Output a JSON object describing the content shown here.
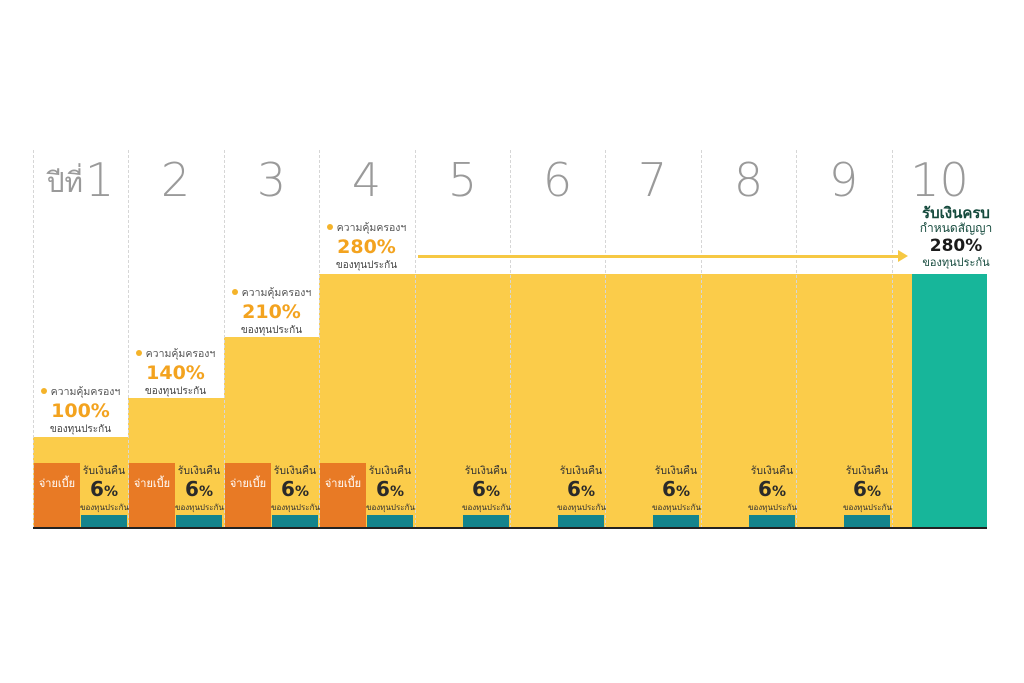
{
  "year_prefix": "ปีที่",
  "years": [
    "1",
    "2",
    "3",
    "4",
    "5",
    "6",
    "7",
    "8",
    "9",
    "10"
  ],
  "coverage": [
    {
      "year": 1,
      "label": "ความคุ้มครองฯ",
      "percent": "100%",
      "sub": "ของทุนประกัน"
    },
    {
      "year": 2,
      "label": "ความคุ้มครองฯ",
      "percent": "140%",
      "sub": "ของทุนประกัน"
    },
    {
      "year": 3,
      "label": "ความคุ้มครองฯ",
      "percent": "210%",
      "sub": "ของทุนประกัน"
    },
    {
      "year": 4,
      "label": "ความคุ้มครองฯ",
      "percent": "280%",
      "sub": "ของทุนประกัน"
    }
  ],
  "coverage_levels_percent": [
    100,
    140,
    210,
    280,
    280,
    280,
    280,
    280,
    280,
    280
  ],
  "premium_label": "จ่ายเบี้ย",
  "premium_years": [
    1,
    2,
    3,
    4
  ],
  "refund": {
    "title": "รับเงินคืน",
    "value": "6",
    "unit": "%",
    "sub": "ของทุนประกัน",
    "years": [
      1,
      2,
      3,
      4,
      5,
      6,
      7,
      8,
      9
    ]
  },
  "maturity": {
    "line1": "รับเงินครบ",
    "line2": "กำหนดสัญญา",
    "percent": "280%",
    "sub": "ของทุนประกัน"
  },
  "colors": {
    "coverage_bar": "#fbcc4a",
    "premium": "#e87a25",
    "refund_bar": "#14848c",
    "maturity_bar": "#17b69a",
    "percent_text": "#f3a31f"
  }
}
